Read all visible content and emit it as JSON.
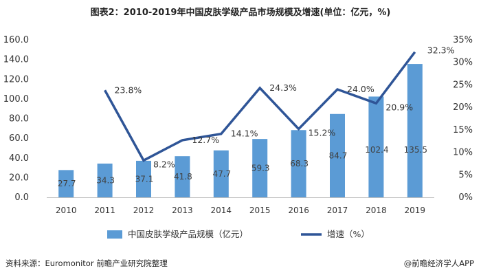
{
  "title": "图表2：2010-2019年中国皮肤学级产品市场规模及增速(单位：亿元，%)",
  "source": "资料来源：Euromonitor 前瞻产业研究院整理",
  "credit": "@前瞻经济学人APP",
  "colors": {
    "bar": "#5b9bd5",
    "line": "#2f5597",
    "label": "#404040"
  },
  "chart_data": {
    "type": "bar",
    "categories": [
      "2010",
      "2011",
      "2012",
      "2013",
      "2014",
      "2015",
      "2016",
      "2017",
      "2018",
      "2019"
    ],
    "series": [
      {
        "name": "中国皮肤学级产品规模（亿元）",
        "type": "bar",
        "axis": "left",
        "values": [
          27.7,
          34.3,
          37.1,
          41.8,
          47.7,
          59.3,
          68.3,
          84.7,
          102.4,
          135.5
        ],
        "labels": [
          "27.7",
          "34.3",
          "37.1",
          "41.8",
          "47.7",
          "59.3",
          "68.3",
          "84.7",
          "102.4",
          "135.5"
        ]
      },
      {
        "name": "增速（%）",
        "type": "line",
        "axis": "right",
        "values": [
          null,
          23.8,
          8.2,
          12.7,
          14.1,
          24.3,
          15.2,
          24.0,
          20.9,
          32.3
        ],
        "labels": [
          "",
          "23.8%",
          "8.2%",
          "12.7%",
          "14.1%",
          "24.3%",
          "15.2%",
          "24.0%",
          "20.9%",
          "32.3%"
        ]
      }
    ],
    "y_left": {
      "min": 0,
      "max": 160,
      "step": 20,
      "ticks": [
        "0.0",
        "20.0",
        "40.0",
        "60.0",
        "80.0",
        "100.0",
        "120.0",
        "140.0",
        "160.0"
      ]
    },
    "y_right": {
      "min": 0,
      "max": 35,
      "step": 5,
      "ticks": [
        "0%",
        "5%",
        "10%",
        "15%",
        "20%",
        "25%",
        "30%",
        "35%"
      ]
    },
    "grid": false,
    "legend_position": "bottom"
  }
}
